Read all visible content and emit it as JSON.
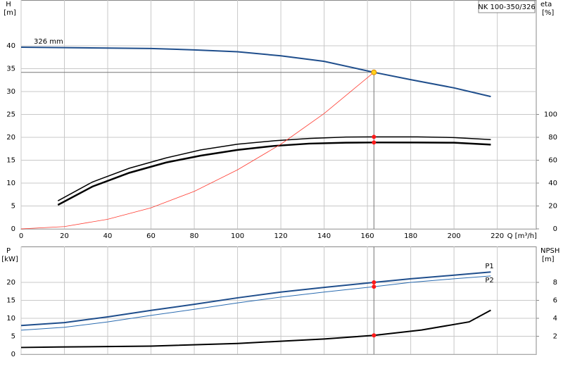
{
  "chart_data": [
    {
      "type": "line",
      "title": "NK 100-350/326",
      "x_label": "Q [m³/h]",
      "y_label": [
        "H",
        "[m]"
      ],
      "y2_label": [
        "eta",
        "[%]"
      ],
      "xlim": [
        0,
        238
      ],
      "xticks": [
        0,
        20,
        40,
        60,
        80,
        100,
        120,
        140,
        160,
        180,
        200,
        220
      ],
      "ylim": [
        0,
        50
      ],
      "yticks": [
        0,
        5,
        10,
        15,
        20,
        25,
        30,
        35,
        40
      ],
      "y2lim": [
        0,
        200
      ],
      "y2ticks": [
        0,
        20,
        40,
        60,
        80,
        100
      ],
      "grid": true,
      "show_xtick_labels": true,
      "series": [
        {
          "name": "326 mm",
          "color": "#1f4e8c",
          "width": 2,
          "x": [
            0,
            20,
            40,
            60,
            80,
            100,
            120,
            140,
            163,
            180,
            200,
            217
          ],
          "values": [
            39.7,
            39.6,
            39.5,
            39.4,
            39.1,
            38.7,
            37.8,
            36.6,
            34.2,
            32.6,
            30.8,
            28.9
          ]
        },
        {
          "color": "#000000",
          "width": 1.5,
          "axis": "y2",
          "x": [
            17,
            33,
            50,
            67,
            83,
            100,
            117,
            133,
            150,
            163,
            183,
            200,
            217
          ],
          "values": [
            24.5,
            41,
            53,
            62,
            69,
            74,
            77,
            79,
            80.2,
            80.4,
            80.4,
            79.8,
            78
          ]
        },
        {
          "color": "#000000",
          "width": 2.5,
          "axis": "y2",
          "x": [
            17,
            33,
            50,
            67,
            83,
            100,
            117,
            133,
            150,
            163,
            183,
            200,
            217
          ],
          "values": [
            20.9,
            37,
            49,
            58,
            64,
            69,
            72.5,
            74.5,
            75.3,
            75.5,
            75.5,
            75.3,
            73.6
          ]
        },
        {
          "color": "#ff3b30",
          "width": 0.8,
          "x": [
            0,
            20,
            40,
            60,
            80,
            100,
            120,
            140,
            163
          ],
          "values": [
            0,
            0.5,
            2.1,
            4.6,
            8.2,
            12.9,
            18.5,
            25.2,
            34.2
          ]
        }
      ],
      "duty_point": {
        "q": 163,
        "h": 34.2,
        "eta": [
          80.4,
          75.5
        ]
      }
    },
    {
      "type": "line",
      "y_label": [
        "P",
        "[kW]"
      ],
      "y2_label": [
        "NPSH",
        "[m]"
      ],
      "xlim": [
        0,
        238
      ],
      "xticks": [
        0,
        20,
        40,
        60,
        80,
        100,
        120,
        140,
        160,
        180,
        200,
        220
      ],
      "ylim": [
        0,
        30
      ],
      "yticks": [
        0,
        5,
        10,
        15,
        20
      ],
      "y2lim": [
        0,
        12
      ],
      "y2ticks": [
        2,
        4,
        6,
        8
      ],
      "grid": true,
      "show_xtick_labels": false,
      "series": [
        {
          "name": "P1",
          "color": "#1f4e8c",
          "width": 2,
          "x": [
            0,
            20,
            40,
            60,
            80,
            100,
            120,
            140,
            163,
            180,
            200,
            217
          ],
          "values": [
            8.0,
            8.8,
            10.4,
            12.2,
            13.9,
            15.7,
            17.3,
            18.6,
            20.0,
            21.0,
            22.0,
            22.9
          ]
        },
        {
          "name": "P2",
          "color": "#2a6bb0",
          "width": 1,
          "x": [
            0,
            20,
            40,
            60,
            80,
            100,
            120,
            140,
            163,
            180,
            200,
            217
          ],
          "values": [
            6.7,
            7.5,
            9.0,
            10.8,
            12.5,
            14.3,
            15.9,
            17.3,
            18.8,
            20.0,
            21.0,
            21.8
          ]
        },
        {
          "color": "#000000",
          "width": 2,
          "axis": "y2",
          "x": [
            0,
            17,
            60,
            100,
            140,
            163,
            185,
            207,
            217
          ],
          "values": [
            0.75,
            0.8,
            0.9,
            1.2,
            1.7,
            2.1,
            2.7,
            3.6,
            4.9
          ]
        }
      ],
      "duty_point": {
        "q": 163,
        "p": [
          20.0,
          18.8
        ],
        "npsh": 2.1
      }
    }
  ]
}
